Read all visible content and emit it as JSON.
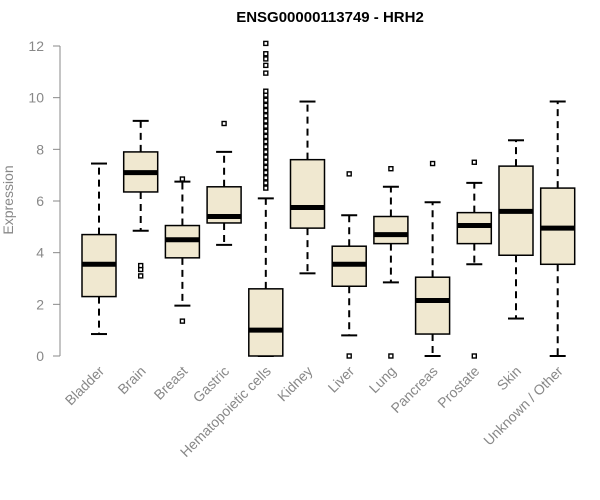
{
  "chart_data": {
    "type": "boxplot",
    "title": "ENSG00000113749 - HRH2",
    "xlabel": "",
    "ylabel": "Expression",
    "ylim": [
      0,
      12
    ],
    "yticks": [
      0,
      2,
      4,
      6,
      8,
      10,
      12
    ],
    "grid": false,
    "legend": "none",
    "box_fill": "#f0e8d0",
    "box_stroke": "#000000",
    "categories": [
      "Bladder",
      "Brain",
      "Breast",
      "Gastric",
      "Hematopoietic cells",
      "Kidney",
      "Liver",
      "Lung",
      "Pancreas",
      "Prostate",
      "Skin",
      "Unknown / Other"
    ],
    "boxes": [
      {
        "whisker_low": 0.85,
        "q1": 2.3,
        "median": 3.55,
        "q3": 4.7,
        "whisker_high": 7.45,
        "outliers": []
      },
      {
        "whisker_low": 4.85,
        "q1": 6.35,
        "median": 7.1,
        "q3": 7.9,
        "whisker_high": 9.1,
        "outliers": [
          3.1,
          3.35,
          3.5
        ]
      },
      {
        "whisker_low": 1.95,
        "q1": 3.8,
        "median": 4.5,
        "q3": 5.05,
        "whisker_high": 6.75,
        "outliers": [
          1.35,
          6.85
        ]
      },
      {
        "whisker_low": 4.3,
        "q1": 5.15,
        "median": 5.4,
        "q3": 6.55,
        "whisker_high": 7.9,
        "outliers": [
          9.0
        ]
      },
      {
        "whisker_low": 0.0,
        "q1": 0.0,
        "median": 1.0,
        "q3": 2.6,
        "whisker_high": 6.1,
        "outliers": [
          6.5,
          6.7,
          6.9,
          7.1,
          7.3,
          7.5,
          7.7,
          7.9,
          8.1,
          8.3,
          8.5,
          8.7,
          8.9,
          9.1,
          9.3,
          9.5,
          9.7,
          9.9,
          10.1,
          10.25,
          10.95,
          11.25,
          11.5,
          11.7,
          12.1
        ]
      },
      {
        "whisker_low": 3.2,
        "q1": 4.95,
        "median": 5.75,
        "q3": 7.6,
        "whisker_high": 9.85,
        "outliers": []
      },
      {
        "whisker_low": 0.8,
        "q1": 2.7,
        "median": 3.55,
        "q3": 4.25,
        "whisker_high": 5.45,
        "outliers": [
          0.0,
          7.05
        ]
      },
      {
        "whisker_low": 2.85,
        "q1": 4.35,
        "median": 4.7,
        "q3": 5.4,
        "whisker_high": 6.55,
        "outliers": [
          0.0,
          7.25
        ]
      },
      {
        "whisker_low": 0.0,
        "q1": 0.85,
        "median": 2.15,
        "q3": 3.05,
        "whisker_high": 5.95,
        "outliers": [
          7.45
        ]
      },
      {
        "whisker_low": 3.55,
        "q1": 4.35,
        "median": 5.05,
        "q3": 5.55,
        "whisker_high": 6.7,
        "outliers": [
          0.0,
          7.5
        ]
      },
      {
        "whisker_low": 1.45,
        "q1": 3.9,
        "median": 5.6,
        "q3": 7.35,
        "whisker_high": 8.35,
        "outliers": []
      },
      {
        "whisker_low": 0.0,
        "q1": 3.55,
        "median": 4.95,
        "q3": 6.5,
        "whisker_high": 9.85,
        "outliers": []
      }
    ]
  }
}
